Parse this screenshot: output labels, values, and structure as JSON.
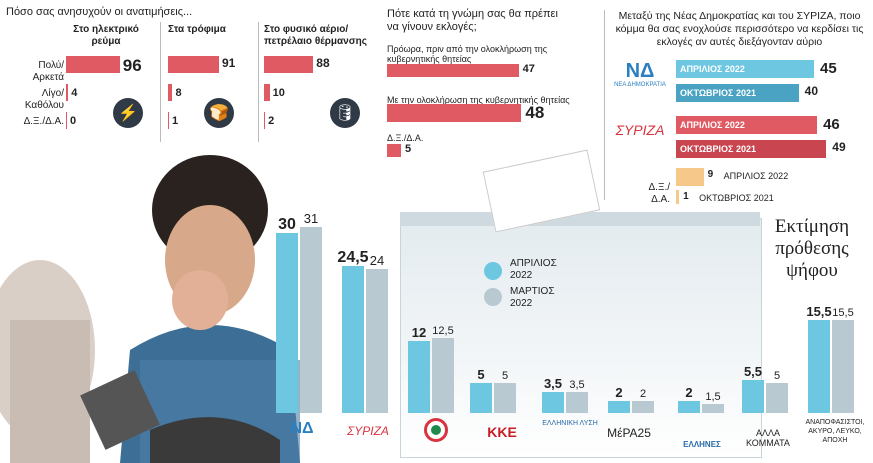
{
  "section1": {
    "title": "Πόσο σας ανησυχούν οι ανατιμήσεις...",
    "col_headers": [
      "Στο ηλεκτρικό ρεύμα",
      "Στα τρόφιμα",
      "Στο φυσικό αέριο/ πετρέλαιο θέρμανσης"
    ],
    "row_labels": [
      "Πολύ/Αρκετά",
      "Λίγο/Καθόλου",
      "Δ.Ξ./Δ.Α."
    ],
    "values": [
      [
        96,
        4,
        0
      ],
      [
        91,
        8,
        1
      ],
      [
        88,
        10,
        2
      ]
    ],
    "values_text": [
      [
        "96",
        "4",
        "0"
      ],
      [
        "91",
        "8",
        "1"
      ],
      [
        "88",
        "10",
        "2"
      ]
    ],
    "icons": [
      "lightning-icon",
      "food-icon",
      "oil-barrel-icon"
    ],
    "color": "#e05a63"
  },
  "section2": {
    "title": "Πότε κατά τη γνώμη σας θα πρέπει να γίνουν εκλογές;",
    "items": [
      {
        "label": "Πρόωρα, πριν από την ολοκλήρωση της κυβερνητικής θητείας",
        "value": 47,
        "value_text": "47"
      },
      {
        "label": "Με την ολοκλήρωση της κυβερνητικής θητείας",
        "value": 48,
        "value_text": "48"
      },
      {
        "label": "Δ.Ξ./Δ.Α.",
        "value": 5,
        "value_text": "5"
      }
    ]
  },
  "section3": {
    "title": "Μεταξύ της Νέας Δημοκρατίας και του ΣΥΡΙΖΑ, ποιο κόμμα θα σας ενοχλούσε περισσότερο να κερδίσει τις εκλογές αν αυτές διεξάγονταν αύριο",
    "groups": [
      {
        "party": "ΝΕΑ ΔΗΜΟΚΡΑΤΙΑ",
        "logo": "ΝΔ",
        "rows": [
          {
            "label": "ΑΠΡΙΛΙΟΣ 2022",
            "value": 45,
            "value_text": "45"
          },
          {
            "label": "ΟΚΤΩΒΡΙΟΣ 2021",
            "value": 40,
            "value_text": "40"
          }
        ]
      },
      {
        "party": "ΣΥΡΙΖΑ",
        "logo": "ΣΥΡΙΖΑ",
        "rows": [
          {
            "label": "ΑΠΡΙΛΙΟΣ 2022",
            "value": 46,
            "value_text": "46"
          },
          {
            "label": "ΟΚΤΩΒΡΙΟΣ 2021",
            "value": 49,
            "value_text": "49"
          }
        ]
      },
      {
        "party": "Δ.Ξ./Δ.Α.",
        "logo": "",
        "rows": [
          {
            "label": "ΑΠΡΙΛΙΟΣ 2022",
            "value": 9,
            "value_text": "9"
          },
          {
            "label": "ΟΚΤΩΒΡΙΟΣ 2021",
            "value": 1,
            "value_text": "1"
          }
        ]
      }
    ],
    "colors": {
      "nd_apr": "#6ec7e0",
      "nd_oct": "#4aa3c2",
      "sy_apr": "#e05a63",
      "sy_oct": "#c9454f",
      "dk_apr": "#f6c88a",
      "dk_oct": "#f6c88a"
    }
  },
  "chart_data": {
    "type": "bar",
    "title": "Εκτίμηση πρόθεσης ψήφου",
    "categories": [
      "ΝΔ",
      "ΣΥΡΙΖΑ",
      "ΠΑΣΟΚ-ΚΙΝΑΛ",
      "ΚΚΕ",
      "ΕΛΛΗΝΙΚΗ ΛΥΣΗ",
      "ΜέΡΑ25",
      "ΕΛΛΗΝΕΣ",
      "ΑΛΛΑ ΚΟΜΜΑΤΑ",
      "ΑΝΑΠΟΦΑΣΙΣΤΟΙ, ΑΚΥΡΟ, ΛΕΥΚΟ, ΑΠΟΧΗ"
    ],
    "category_labels": [
      "",
      "",
      "",
      "",
      "",
      "",
      "",
      "ΑΛΛΑ ΚΟΜΜΑΤΑ",
      "ΑΝΑΠΟΦΑΣΙΣΤΟΙ, ΑΚΥΡΟ, ΛΕΥΚΟ, ΑΠΟΧΗ"
    ],
    "series": [
      {
        "name": "ΑΠΡΙΛΙΟΣ 2022",
        "color": "#6ec7e0",
        "values": [
          30,
          24.5,
          12,
          5,
          3.5,
          2,
          2,
          5.5,
          15.5
        ],
        "labels": [
          "30",
          "24,5",
          "12",
          "5",
          "3,5",
          "2",
          "2",
          "5,5",
          "15,5"
        ]
      },
      {
        "name": "ΜΑΡΤΙΟΣ 2022",
        "color": "#b9c9d1",
        "values": [
          31,
          24,
          12.5,
          5,
          3.5,
          2,
          1.5,
          5,
          15.5
        ],
        "labels": [
          "31",
          "24",
          "12,5",
          "5",
          "3,5",
          "2",
          "1,5",
          "5",
          "15,5"
        ]
      }
    ],
    "ylim": [
      0,
      31
    ]
  },
  "logos": {
    "nd": "ΝΔ",
    "syriza": "ΣΥΡΙΖΑ",
    "kke": "ΚΚΕ",
    "el": "ΕΛΛΗΝΙΚΗ ΛΥΣΗ",
    "mera": "ΜέΡΑ25",
    "ellines": "ΕΛΛΗΝΕΣ"
  }
}
